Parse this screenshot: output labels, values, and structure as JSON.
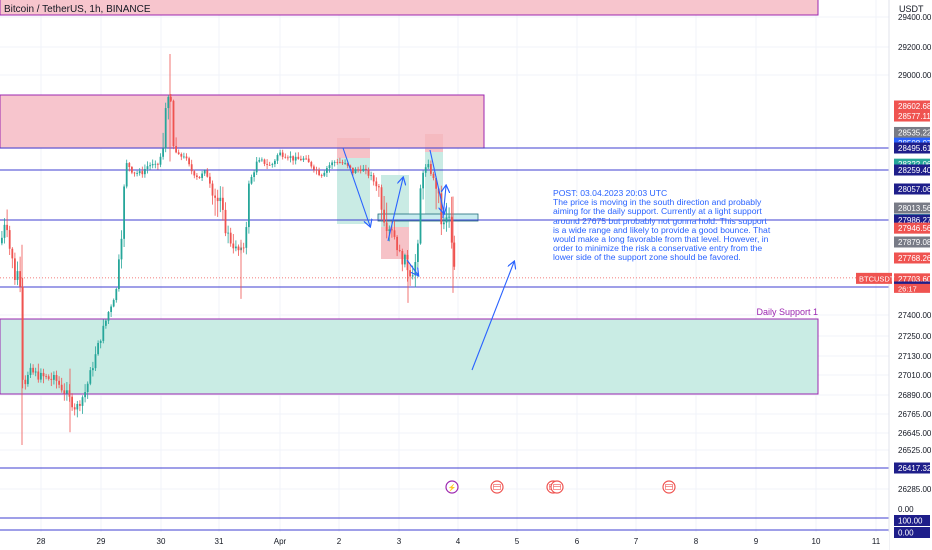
{
  "header": {
    "title": "Bitcoin / TetherUS, 1h, BINANCE",
    "currency": "USDT"
  },
  "annotations": {
    "post_title": "POST: 03.04.2023 20:03 UTC",
    "post_body": "The price is moving in the south direction and probably aiming for the daily support. Currently at a light support around 27675 but probably not gonna hold. This support is a wide range and likely to provide a good bounce. That would make a long favorable from that level. However, in order to minimize the risk a conservative entry from the lower side of the support zone should be favored.",
    "daily_support_label": "Daily Support 1",
    "symbol_tag": "BTCUSDT",
    "countdown": "26:17"
  },
  "colors": {
    "bull": "#26a69a",
    "bear": "#ef5350",
    "resistance_fill": "#f7c5cd",
    "zone_border": "#9c27b0",
    "support_fill": "#c9ece4",
    "level_line": "#3f3fd0",
    "drawing": "#2962ff"
  },
  "chart_data": {
    "type": "candlestick",
    "title": "Bitcoin / TetherUS, 1h, BINANCE",
    "currency": "USDT",
    "y_ticks": [
      29400,
      29200,
      29000,
      28602.68,
      28577.11,
      28535.22,
      28508.07,
      28495.61,
      28322.06,
      28259.4,
      28057.06,
      28013.56,
      27987.19,
      27986.27,
      27946.56,
      27879.08,
      27768.26,
      27703.6,
      27678.37,
      27400,
      27250,
      27130,
      27010,
      26890,
      26765,
      26645,
      26525,
      26417.32,
      26285
    ],
    "price_labels": [
      {
        "text": "28602.68",
        "color": "#ef5350"
      },
      {
        "text": "28577.11",
        "color": "#ef5350"
      },
      {
        "text": "28535.22",
        "color": "#787b86"
      },
      {
        "text": "28508.07",
        "color": "#2962ff"
      },
      {
        "text": "28495.61",
        "color": "#1e1e8a"
      },
      {
        "text": "28322.06",
        "color": "#26a69a"
      },
      {
        "text": "28259.40",
        "color": "#1e1e8a"
      },
      {
        "text": "28057.06",
        "color": "#1e1e8a"
      },
      {
        "text": "28013.56",
        "color": "#787b86"
      },
      {
        "text": "27987.19",
        "color": "#26a69a"
      },
      {
        "text": "27986.27",
        "color": "#1e1e8a"
      },
      {
        "text": "27946.56",
        "color": "#ef5350"
      },
      {
        "text": "27879.08",
        "color": "#787b86"
      },
      {
        "text": "27768.26",
        "color": "#ef5350"
      },
      {
        "text": "27703.60",
        "color": "#ef5350"
      },
      {
        "text": "27678.37",
        "color": "#1e1e8a"
      },
      {
        "text": "26417.32",
        "color": "#1e1e8a"
      }
    ],
    "last_price": 27703.6,
    "countdown": "26:17",
    "x_ticks": [
      "28",
      "29",
      "30",
      "31",
      "Apr",
      "2",
      "3",
      "4",
      "5",
      "6",
      "7",
      "8",
      "9",
      "10",
      "11"
    ],
    "volume_ticks": [
      "0.00",
      "100.00",
      "0.00"
    ],
    "horizontal_levels": [
      28495.61,
      28259.4,
      27986.27,
      27678.37,
      26417.32
    ],
    "resistance_zone": [
      28495,
      28840
    ],
    "support_zone": {
      "low": 26870,
      "high": 27375,
      "label": "Daily Support 1"
    },
    "light_support": 27675,
    "ylim": [
      26200,
      29470
    ]
  }
}
